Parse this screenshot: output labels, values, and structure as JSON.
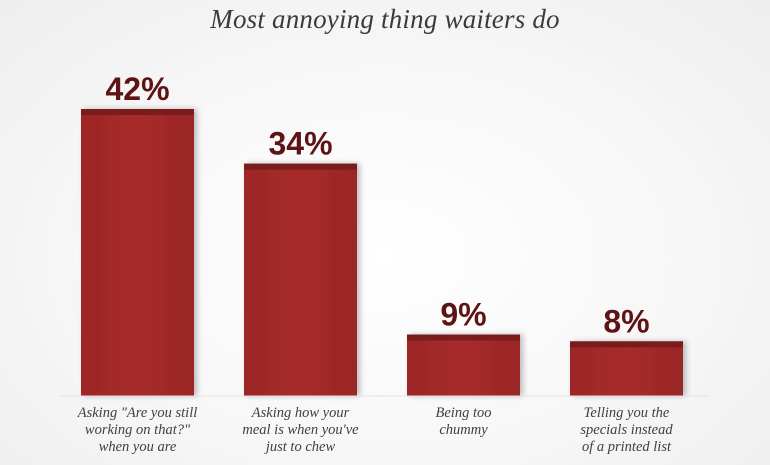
{
  "chart_data": {
    "type": "bar",
    "title": "Most annoying thing waiters do",
    "categories": [
      [
        "Asking \"Are you still",
        "working on that?\"",
        "when you are"
      ],
      [
        "Asking how your",
        "meal is when you've",
        "just to chew"
      ],
      [
        "Being too",
        "chummy"
      ],
      [
        "Telling you the",
        "specials instead",
        "of a printed list"
      ]
    ],
    "values": [
      42,
      34,
      9,
      8
    ],
    "value_labels": [
      "42%",
      "34%",
      "9%",
      "8%"
    ],
    "ylim": [
      0,
      42
    ],
    "bar_color": "#a42a2a",
    "bar_top_color": "#7a1c1c",
    "value_label_color": "#5e1414"
  }
}
